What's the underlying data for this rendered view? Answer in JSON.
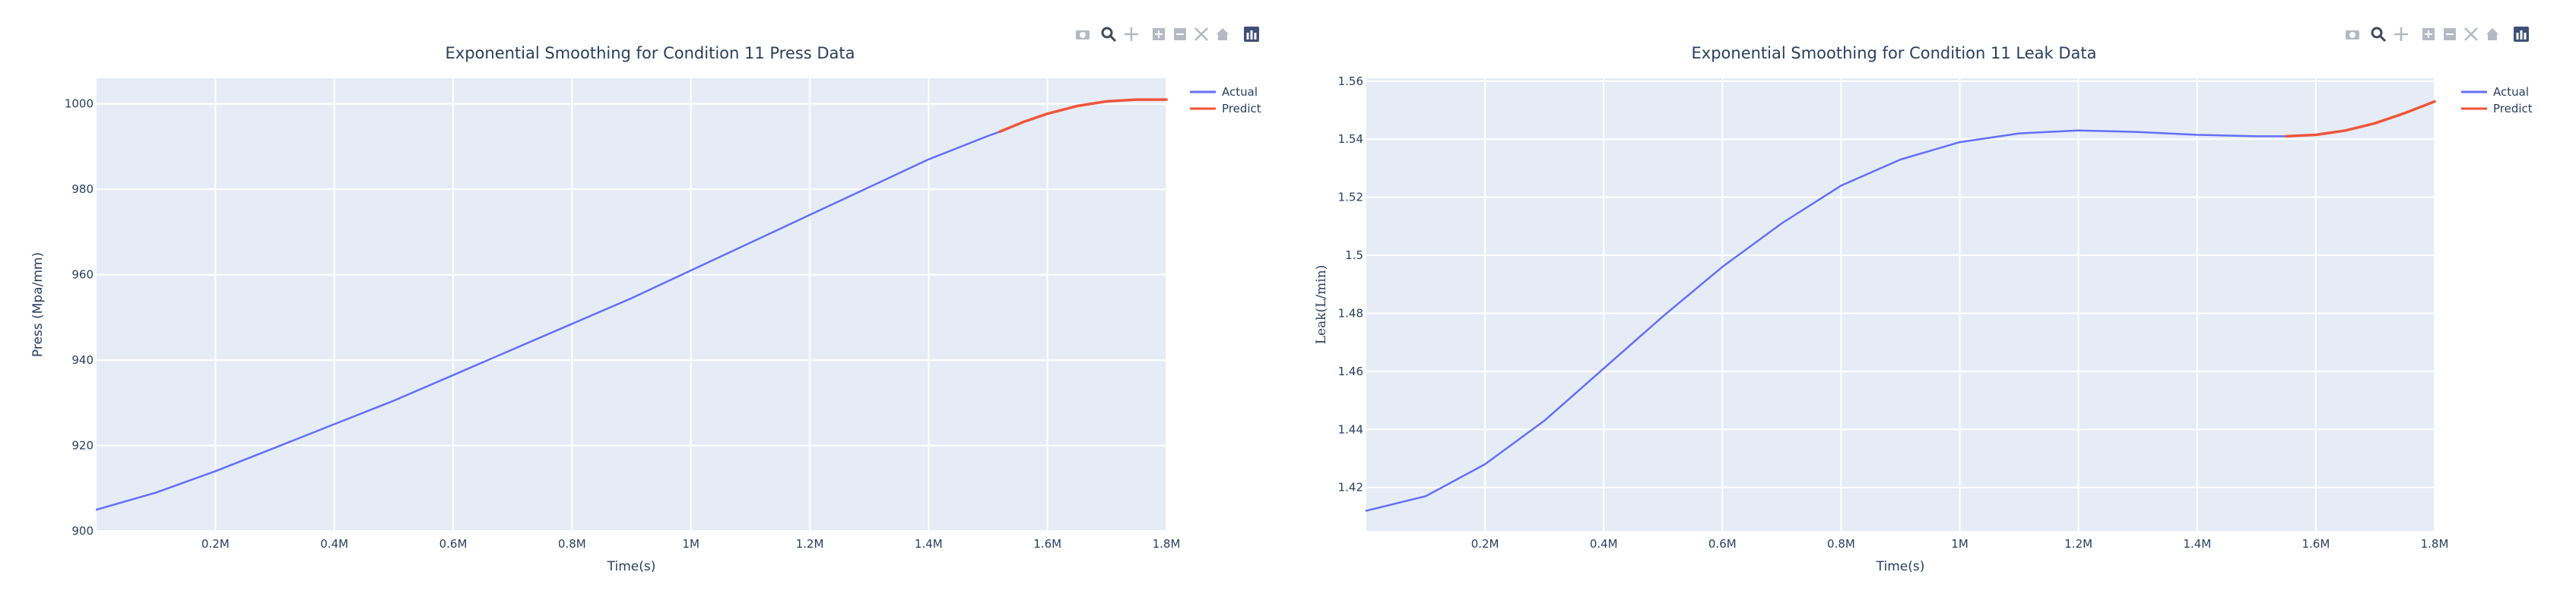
{
  "colors": {
    "plot_bg": "#e5ecf6",
    "grid": "#ffffff",
    "actual": "#636efa",
    "predict": "#ef553b",
    "text": "#2a3f5f",
    "toolbar_icon": "#b5b9c4",
    "toolbar_active": "#44495c",
    "toolbar_logo": "#3f4f75"
  },
  "toolbar": {
    "icons": [
      "camera-icon",
      "zoom-icon",
      "pan-icon",
      "zoom-in-icon",
      "zoom-out-icon",
      "autoscale-icon",
      "reset-axes-icon",
      "plotly-logo-icon"
    ]
  },
  "chart_data": [
    {
      "type": "line",
      "title": "Exponential Smoothing for Condition 11 Press Data",
      "xlabel": "Time(s)",
      "ylabel": "Press (Mpa/mm)",
      "xlim": [
        0,
        1800000
      ],
      "ylim": [
        900,
        1006
      ],
      "x_ticks": [
        200000,
        400000,
        600000,
        800000,
        1000000,
        1200000,
        1400000,
        1600000,
        1800000
      ],
      "x_tick_labels": [
        "0.2M",
        "0.4M",
        "0.6M",
        "0.8M",
        "1M",
        "1.2M",
        "1.4M",
        "1.6M",
        "1.8M"
      ],
      "y_ticks": [
        900,
        920,
        940,
        960,
        980,
        1000
      ],
      "y_tick_labels": [
        "900",
        "920",
        "940",
        "960",
        "980",
        "1000"
      ],
      "grid": true,
      "legend": "top-right",
      "series": [
        {
          "name": "Actual",
          "x": [
            0,
            100000,
            200000,
            300000,
            400000,
            500000,
            600000,
            700000,
            800000,
            900000,
            1000000,
            1100000,
            1200000,
            1300000,
            1400000,
            1500000,
            1520000
          ],
          "y": [
            905,
            909,
            914,
            919.5,
            925,
            930.5,
            936.5,
            942.5,
            948.5,
            954.5,
            961,
            967.5,
            974,
            980.5,
            987,
            992.5,
            993.5
          ]
        },
        {
          "name": "Predict",
          "x": [
            1520000,
            1560000,
            1600000,
            1650000,
            1700000,
            1750000,
            1800000
          ],
          "y": [
            993.5,
            995.8,
            997.7,
            999.5,
            1000.6,
            1001,
            1001
          ]
        }
      ]
    },
    {
      "type": "line",
      "title": "Exponential Smoothing for Condition 11 Leak Data",
      "xlabel": "Time(s)",
      "ylabel": "Leak(L/min)",
      "xlim": [
        0,
        1800000
      ],
      "ylim": [
        1.405,
        1.561
      ],
      "x_ticks": [
        200000,
        400000,
        600000,
        800000,
        1000000,
        1200000,
        1400000,
        1600000,
        1800000
      ],
      "x_tick_labels": [
        "0.2M",
        "0.4M",
        "0.6M",
        "0.8M",
        "1M",
        "1.2M",
        "1.4M",
        "1.6M",
        "1.8M"
      ],
      "y_ticks": [
        1.42,
        1.44,
        1.46,
        1.48,
        1.5,
        1.52,
        1.54,
        1.56
      ],
      "y_tick_labels": [
        "1.42",
        "1.44",
        "1.46",
        "1.48",
        "1.5",
        "1.52",
        "1.54",
        "1.56"
      ],
      "grid": true,
      "legend": "top-right",
      "series": [
        {
          "name": "Actual",
          "x": [
            0,
            100000,
            200000,
            300000,
            400000,
            500000,
            600000,
            700000,
            800000,
            900000,
            1000000,
            1100000,
            1200000,
            1300000,
            1400000,
            1500000,
            1550000
          ],
          "y": [
            1.412,
            1.417,
            1.428,
            1.443,
            1.461,
            1.479,
            1.496,
            1.511,
            1.524,
            1.533,
            1.539,
            1.542,
            1.543,
            1.5425,
            1.5415,
            1.541,
            1.541
          ]
        },
        {
          "name": "Predict",
          "x": [
            1550000,
            1600000,
            1650000,
            1700000,
            1750000,
            1800000
          ],
          "y": [
            1.541,
            1.5415,
            1.543,
            1.5455,
            1.549,
            1.553
          ]
        }
      ]
    }
  ]
}
